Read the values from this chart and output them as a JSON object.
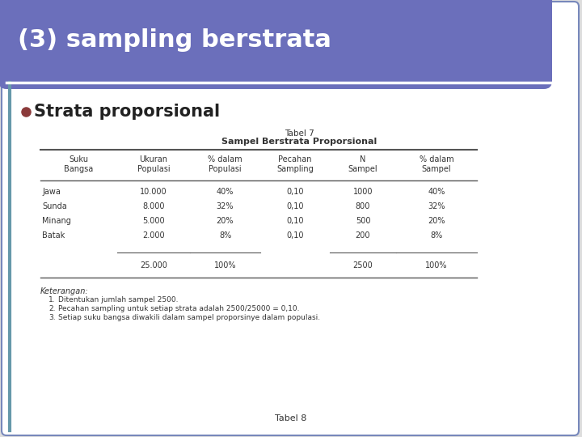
{
  "title": "(3) sampling berstrata",
  "title_bg_color": "#6B6FBB",
  "title_text_color": "#FFFFFF",
  "bullet_text": "Strata proporsional",
  "bullet_color": "#8B3A3A",
  "table_title_line1": "Tabel 7",
  "table_title_line2": "Sampel Berstrata Proporsional",
  "col_headers": [
    "Suku\nBangsa",
    "Ukuran\nPopulasi",
    "% dalam\nPopulasi",
    "Pecahan\nSampling",
    "N\nSampel",
    "% dalam\nSampel"
  ],
  "rows": [
    [
      "Jawa",
      "10.000",
      "40%",
      "0,10",
      "1000",
      "40%"
    ],
    [
      "Sunda",
      "8.000",
      "32%",
      "0,10",
      "800",
      "32%"
    ],
    [
      "Minang",
      "5.000",
      "20%",
      "0,10",
      "500",
      "20%"
    ],
    [
      "Batak",
      "2.000",
      "8%",
      "0,10",
      "200",
      "8%"
    ]
  ],
  "total_row": [
    "",
    "25.000",
    "100%",
    "",
    "2500",
    "100%"
  ],
  "notes_title": "Keterangan:",
  "notes": [
    "Ditentukan jumlah sampel 2500.",
    "Pecahan sampling untuk setiap strata adalah 2500/25000 = 0,10.",
    "Setiap suku bangsa diwakili dalam sampel proporsinye dalam populasi."
  ],
  "footer": "Tabel 8",
  "bg_color": "#FFFFFF",
  "slide_bg": "#DDDDDD",
  "border_color": "#7788BB",
  "table_text_color": "#333333",
  "header_line_color": "#555555"
}
